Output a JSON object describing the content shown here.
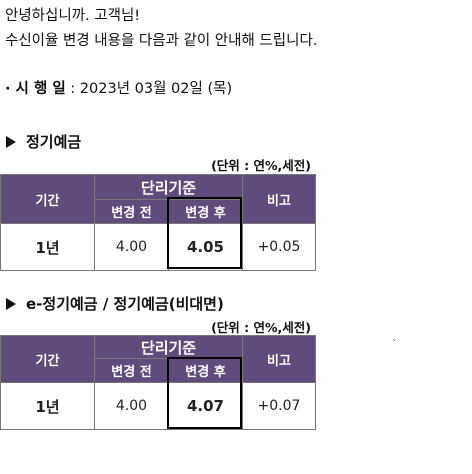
{
  "greeting": "안녕하십니까. 고객님!",
  "intro": "수신이율 변경 내용을 다음과 같이 안내해 드립니다.",
  "date_label": "· 시 행 일",
  "date_value": " : 2023년 03월 02일 (목)",
  "unit_label": "(단위 : 연%,세전)",
  "sections": [
    {
      "title": "정기예금",
      "header": {
        "period": "기간",
        "base": "단리기준",
        "before": "변경 전",
        "after": "변경 후",
        "note": "비고"
      },
      "row": {
        "period": "1년",
        "before": "4.00",
        "after": "4.05",
        "note": "+0.05"
      }
    },
    {
      "title": "e-정기예금 / 정기예금(비대면)",
      "header": {
        "period": "기간",
        "base": "단리기준",
        "before": "변경 전",
        "after": "변경 후",
        "note": "비고"
      },
      "row": {
        "period": "1년",
        "before": "4.00",
        "after": "4.07",
        "note": "+0.07"
      }
    }
  ],
  "colors": {
    "header_bg": "#5f4b7c",
    "header_text": "#ffffff"
  },
  "stray_mark": "`"
}
